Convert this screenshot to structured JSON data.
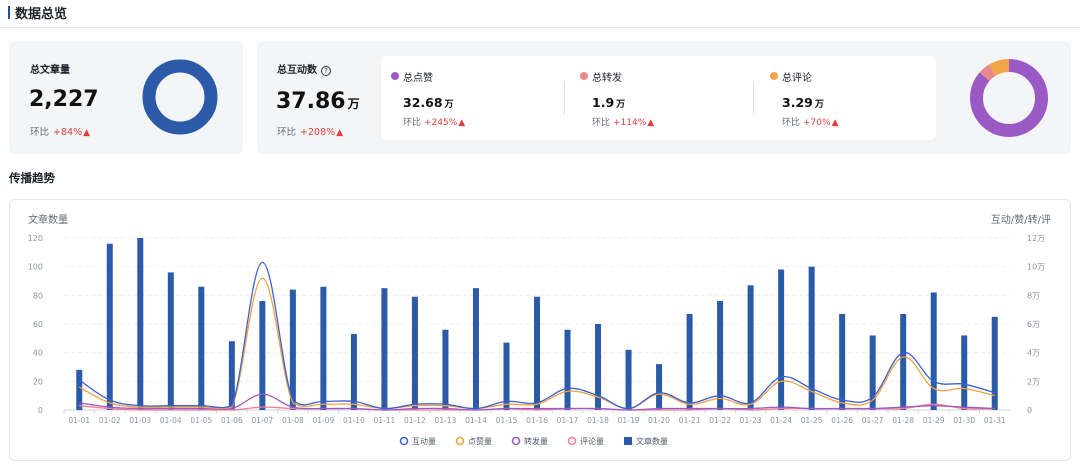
{
  "section_title": "数据总览",
  "total_articles": {
    "label": "总文章量",
    "value": "2,227",
    "ratio_label": "环比",
    "ratio_value": "+84%",
    "arrow": "▲"
  },
  "total_interactions": {
    "label": "总互动数",
    "help": "?",
    "value": "37.86",
    "unit": "万",
    "ratio_label": "环比",
    "ratio_value": "+208%",
    "arrow": "▲"
  },
  "breakdown": [
    {
      "label": "总点赞",
      "value": "32.68",
      "unit": "万",
      "ratio_label": "环比",
      "ratio_value": "+245%",
      "arrow": "▲",
      "color": "#9b59c5"
    },
    {
      "label": "总转发",
      "value": "1.9",
      "unit": "万",
      "ratio_label": "环比",
      "ratio_value": "+114%",
      "arrow": "▲",
      "color": "#e98a8a"
    },
    {
      "label": "总评论",
      "value": "3.29",
      "unit": "万",
      "ratio_label": "环比",
      "ratio_value": "+70%",
      "arrow": "▲",
      "color": "#f2a44b"
    }
  ],
  "colors": {
    "article": "#2b5aa8",
    "interaction": "#3d5fd6",
    "like": "#f0a23b",
    "share": "#9b59c5",
    "comment": "#f27d9a"
  },
  "trend_title": "传播趋势",
  "chart_data": {
    "type": "bar",
    "title": "",
    "ylabel": "文章数量",
    "y2label": "互动/赞/转/评",
    "categories": [
      "01-01",
      "01-02",
      "01-03",
      "01-04",
      "01-05",
      "01-06",
      "01-07",
      "01-08",
      "01-09",
      "01-10",
      "01-11",
      "01-12",
      "01-13",
      "01-14",
      "01-15",
      "01-16",
      "01-17",
      "01-18",
      "01-19",
      "01-20",
      "01-21",
      "01-22",
      "01-23",
      "01-24",
      "01-25",
      "01-26",
      "01-27",
      "01-28",
      "01-29",
      "01-30",
      "01-31"
    ],
    "ylim": [
      0,
      120
    ],
    "y_ticks": [
      "0",
      "20",
      "40",
      "60",
      "80",
      "100",
      "120"
    ],
    "y2lim": [
      0,
      120000
    ],
    "y2_ticks": [
      "0",
      "2万",
      "4万",
      "6万",
      "8万",
      "10万",
      "12万"
    ],
    "grid": true,
    "legend_position": "bottom",
    "series": [
      {
        "name": "互动量",
        "type": "line",
        "axis": "right",
        "values": [
          21000,
          7000,
          3000,
          3000,
          3000,
          3000,
          103000,
          7000,
          6000,
          6000,
          1000,
          4000,
          4000,
          1000,
          6000,
          5000,
          15000,
          10000,
          1000,
          12000,
          5000,
          10000,
          5000,
          23000,
          15000,
          7000,
          9000,
          40000,
          20000,
          18000,
          12000
        ]
      },
      {
        "name": "点赞量",
        "type": "line",
        "axis": "right",
        "values": [
          16000,
          5000,
          2000,
          2000,
          2000,
          2000,
          92000,
          5000,
          4000,
          4000,
          1000,
          3000,
          3000,
          1000,
          4000,
          4000,
          13000,
          9000,
          1000,
          11000,
          4000,
          8000,
          4000,
          20000,
          13000,
          5000,
          7000,
          37000,
          15000,
          15000,
          10000
        ]
      },
      {
        "name": "转发量",
        "type": "line",
        "axis": "right",
        "values": [
          5000,
          2000,
          1000,
          1000,
          1000,
          1000,
          11000,
          2000,
          1000,
          1000,
          0,
          1000,
          1000,
          0,
          1000,
          1000,
          1000,
          1000,
          0,
          1000,
          1000,
          1000,
          1000,
          2000,
          1000,
          1000,
          1000,
          2000,
          3000,
          2000,
          1000
        ]
      },
      {
        "name": "评论量",
        "type": "line",
        "axis": "right",
        "values": [
          3000,
          1000,
          0,
          0,
          0,
          0,
          2000,
          1000,
          1000,
          1000,
          0,
          0,
          0,
          0,
          1000,
          0,
          1000,
          1000,
          0,
          0,
          0,
          1000,
          0,
          1000,
          1000,
          1000,
          1000,
          1000,
          4000,
          1000,
          1000
        ]
      },
      {
        "name": "文章数量",
        "type": "bar",
        "axis": "left",
        "values": [
          28,
          116,
          120,
          96,
          86,
          48,
          76,
          84,
          86,
          53,
          85,
          79,
          56,
          85,
          47,
          79,
          56,
          60,
          42,
          32,
          67,
          76,
          87,
          98,
          100,
          67,
          52,
          67,
          82,
          52,
          65
        ]
      }
    ]
  }
}
